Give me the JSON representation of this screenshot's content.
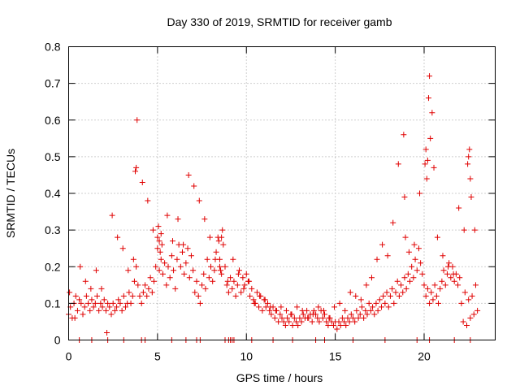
{
  "chart_data": {
    "type": "scatter",
    "title": "Day 330 of 2019, SRMTID for receiver gamb",
    "xlabel": "GPS time / hours",
    "ylabel": "SRMTID / TECUs",
    "xlim": [
      0,
      24
    ],
    "ylim": [
      0,
      0.8
    ],
    "xticks": [
      0,
      5,
      10,
      15,
      20
    ],
    "xtick_labels": [
      "0",
      "5",
      "10",
      "15",
      "20"
    ],
    "yticks": [
      0,
      0.1,
      0.2,
      0.3,
      0.4,
      0.5,
      0.6,
      0.7,
      0.8
    ],
    "ytick_labels": [
      "0",
      "0.1",
      "0.2",
      "0.3",
      "0.4",
      "0.5",
      "0.6",
      "0.7",
      "0.8"
    ],
    "grid": true,
    "marker": "+",
    "series_color": "#e00000",
    "series": [
      {
        "name": "SRMTID",
        "x": [
          0.0,
          0.1,
          0.2,
          0.3,
          0.4,
          0.5,
          0.6,
          0.7,
          0.8,
          0.9,
          1.0,
          1.1,
          1.2,
          1.3,
          1.4,
          1.5,
          1.6,
          1.7,
          1.8,
          1.9,
          2.0,
          2.1,
          2.2,
          2.3,
          2.4,
          2.5,
          2.6,
          2.7,
          2.8,
          2.9,
          3.0,
          3.1,
          3.2,
          3.3,
          3.4,
          3.5,
          3.6,
          3.7,
          3.8,
          3.9,
          4.0,
          4.1,
          4.2,
          4.3,
          4.4,
          4.5,
          4.6,
          4.7,
          4.8,
          4.9,
          5.0,
          5.1,
          5.2,
          5.3,
          5.4,
          5.5,
          5.6,
          5.7,
          5.8,
          5.9,
          6.0,
          6.1,
          6.2,
          6.3,
          6.4,
          6.5,
          6.6,
          6.7,
          6.8,
          6.9,
          7.0,
          7.1,
          7.2,
          7.3,
          7.4,
          7.5,
          7.6,
          7.7,
          7.8,
          7.9,
          8.0,
          8.1,
          8.2,
          8.3,
          8.4,
          8.5,
          8.6,
          8.7,
          8.8,
          8.9,
          9.0,
          9.1,
          9.2,
          9.3,
          9.4,
          9.5,
          9.6,
          9.7,
          9.8,
          9.9,
          10.0,
          10.1,
          10.2,
          10.3,
          10.4,
          10.5,
          10.6,
          10.7,
          10.8,
          10.9,
          11.0,
          11.1,
          11.2,
          11.3,
          11.4,
          11.5,
          11.6,
          11.7,
          11.8,
          11.9,
          12.0,
          12.1,
          12.2,
          12.3,
          12.4,
          12.5,
          12.6,
          12.7,
          12.8,
          12.9,
          13.0,
          13.1,
          13.2,
          13.3,
          13.4,
          13.5,
          13.6,
          13.7,
          13.8,
          13.9,
          14.0,
          14.1,
          14.2,
          14.3,
          14.4,
          14.5,
          14.6,
          14.7,
          14.8,
          14.9,
          15.0,
          15.1,
          15.2,
          15.3,
          15.4,
          15.5,
          15.6,
          15.7,
          15.8,
          15.9,
          16.0,
          16.1,
          16.2,
          16.3,
          16.4,
          16.5,
          16.6,
          16.7,
          16.8,
          16.9,
          17.0,
          17.1,
          17.2,
          17.3,
          17.4,
          17.5,
          17.6,
          17.7,
          17.8,
          17.9,
          18.0,
          18.1,
          18.2,
          18.3,
          18.4,
          18.5,
          18.6,
          18.7,
          18.8,
          18.9,
          19.0,
          19.1,
          19.2,
          19.3,
          19.4,
          19.5,
          19.6,
          19.7,
          19.8,
          19.9,
          20.0,
          20.1,
          20.2,
          20.3,
          20.4,
          20.5,
          20.6,
          20.7,
          20.8,
          20.9,
          21.0,
          21.1,
          21.2,
          21.3,
          21.4,
          21.5,
          21.6,
          21.7,
          21.8,
          21.9,
          22.0,
          22.1,
          22.2,
          22.3,
          22.4,
          22.5,
          22.6,
          22.7,
          22.8,
          22.9,
          23.0,
          0.05,
          0.35,
          0.65,
          0.95,
          1.25,
          1.55,
          1.85,
          2.15,
          2.45,
          2.75,
          3.05,
          3.35,
          3.65,
          3.75,
          3.8,
          3.85,
          4.15,
          4.45,
          4.75,
          5.0,
          5.05,
          5.1,
          5.15,
          5.2,
          5.25,
          5.55,
          5.85,
          6.15,
          6.45,
          6.75,
          7.05,
          7.35,
          7.65,
          7.95,
          8.25,
          8.45,
          8.5,
          8.55,
          8.6,
          8.65,
          8.95,
          9.25,
          9.55,
          9.85,
          10.15,
          10.45,
          10.75,
          11.05,
          11.35,
          11.65,
          11.95,
          12.25,
          12.55,
          12.85,
          13.15,
          13.45,
          13.75,
          14.05,
          14.35,
          14.65,
          14.95,
          15.25,
          15.55,
          15.85,
          16.15,
          16.45,
          16.75,
          17.05,
          17.35,
          17.65,
          17.95,
          18.25,
          18.55,
          18.85,
          18.9,
          18.95,
          19.15,
          19.45,
          19.75,
          20.05,
          20.1,
          20.15,
          20.2,
          20.25,
          20.3,
          20.35,
          20.45,
          20.55,
          20.75,
          21.05,
          21.35,
          21.65,
          21.95,
          22.25,
          22.45,
          22.5,
          22.55,
          22.6,
          22.65,
          22.85,
          0.6,
          1.3,
          2.2,
          3.1,
          4.1,
          4.3,
          5.8,
          6.6,
          7.2,
          7.4,
          8.8,
          9.0,
          9.1,
          9.2,
          9.3,
          10.3,
          11.5,
          12.6,
          13.9,
          14.4,
          16.0,
          17.8,
          19.6,
          20.3,
          21.7,
          22.6
        ],
        "y": [
          0.07,
          0.09,
          0.06,
          0.1,
          0.12,
          0.08,
          0.11,
          0.1,
          0.07,
          0.09,
          0.12,
          0.1,
          0.08,
          0.11,
          0.09,
          0.1,
          0.12,
          0.08,
          0.1,
          0.09,
          0.11,
          0.08,
          0.1,
          0.09,
          0.07,
          0.1,
          0.08,
          0.09,
          0.11,
          0.1,
          0.08,
          0.12,
          0.09,
          0.1,
          0.13,
          0.1,
          0.12,
          0.16,
          0.2,
          0.15,
          0.12,
          0.1,
          0.13,
          0.15,
          0.12,
          0.14,
          0.17,
          0.13,
          0.16,
          0.2,
          0.25,
          0.19,
          0.22,
          0.18,
          0.21,
          0.15,
          0.2,
          0.17,
          0.23,
          0.19,
          0.14,
          0.22,
          0.26,
          0.2,
          0.24,
          0.18,
          0.21,
          0.25,
          0.17,
          0.23,
          0.19,
          0.13,
          0.16,
          0.12,
          0.1,
          0.15,
          0.18,
          0.14,
          0.22,
          0.17,
          0.2,
          0.16,
          0.19,
          0.24,
          0.28,
          0.22,
          0.18,
          0.26,
          0.2,
          0.15,
          0.13,
          0.17,
          0.14,
          0.16,
          0.12,
          0.15,
          0.19,
          0.13,
          0.17,
          0.15,
          0.18,
          0.16,
          0.12,
          0.14,
          0.11,
          0.1,
          0.13,
          0.09,
          0.12,
          0.08,
          0.11,
          0.09,
          0.1,
          0.08,
          0.07,
          0.09,
          0.06,
          0.08,
          0.05,
          0.07,
          0.06,
          0.05,
          0.04,
          0.06,
          0.05,
          0.07,
          0.04,
          0.06,
          0.05,
          0.04,
          0.06,
          0.05,
          0.07,
          0.06,
          0.08,
          0.06,
          0.07,
          0.05,
          0.08,
          0.07,
          0.06,
          0.05,
          0.08,
          0.06,
          0.07,
          0.05,
          0.04,
          0.06,
          0.05,
          0.04,
          0.05,
          0.03,
          0.05,
          0.04,
          0.06,
          0.05,
          0.04,
          0.06,
          0.05,
          0.07,
          0.06,
          0.05,
          0.08,
          0.06,
          0.07,
          0.09,
          0.06,
          0.08,
          0.07,
          0.1,
          0.08,
          0.09,
          0.07,
          0.1,
          0.08,
          0.11,
          0.09,
          0.12,
          0.1,
          0.13,
          0.09,
          0.12,
          0.14,
          0.1,
          0.13,
          0.16,
          0.12,
          0.15,
          0.13,
          0.17,
          0.14,
          0.18,
          0.16,
          0.2,
          0.17,
          0.22,
          0.19,
          0.25,
          0.21,
          0.18,
          0.15,
          0.12,
          0.14,
          0.1,
          0.13,
          0.11,
          0.15,
          0.12,
          0.1,
          0.14,
          0.16,
          0.19,
          0.15,
          0.18,
          0.21,
          0.17,
          0.2,
          0.16,
          0.18,
          0.15,
          0.17,
          0.1,
          0.05,
          0.13,
          0.04,
          0.11,
          0.06,
          0.12,
          0.07,
          0.15,
          0.08,
          0.13,
          0.06,
          0.2,
          0.16,
          0.14,
          0.19,
          0.14,
          0.02,
          0.34,
          0.28,
          0.25,
          0.19,
          0.22,
          0.46,
          0.47,
          0.6,
          0.43,
          0.38,
          0.3,
          0.28,
          0.31,
          0.27,
          0.24,
          0.29,
          0.26,
          0.34,
          0.27,
          0.33,
          0.26,
          0.45,
          0.42,
          0.38,
          0.33,
          0.28,
          0.22,
          0.27,
          0.2,
          0.19,
          0.28,
          0.3,
          0.16,
          0.22,
          0.18,
          0.14,
          0.16,
          0.1,
          0.12,
          0.11,
          0.09,
          0.08,
          0.09,
          0.08,
          0.07,
          0.09,
          0.08,
          0.06,
          0.07,
          0.09,
          0.08,
          0.06,
          0.09,
          0.1,
          0.08,
          0.13,
          0.12,
          0.11,
          0.15,
          0.17,
          0.22,
          0.26,
          0.23,
          0.32,
          0.48,
          0.56,
          0.39,
          0.28,
          0.24,
          0.26,
          0.4,
          0.48,
          0.52,
          0.44,
          0.49,
          0.66,
          0.72,
          0.55,
          0.62,
          0.47,
          0.28,
          0.23,
          0.2,
          0.18,
          0.36,
          0.3,
          0.48,
          0.5,
          0.52,
          0.44,
          0.39,
          0.3,
          0.0,
          0.0,
          0.0,
          0.0,
          0.0,
          0.0,
          0.0,
          0.0,
          0.0,
          0.0,
          0.0,
          0.0,
          0.0,
          0.0,
          0.0,
          0.0,
          0.0,
          0.0,
          0.0,
          0.0,
          0.0,
          0.0,
          0.0,
          0.0,
          0.0,
          0.0
        ]
      }
    ]
  }
}
